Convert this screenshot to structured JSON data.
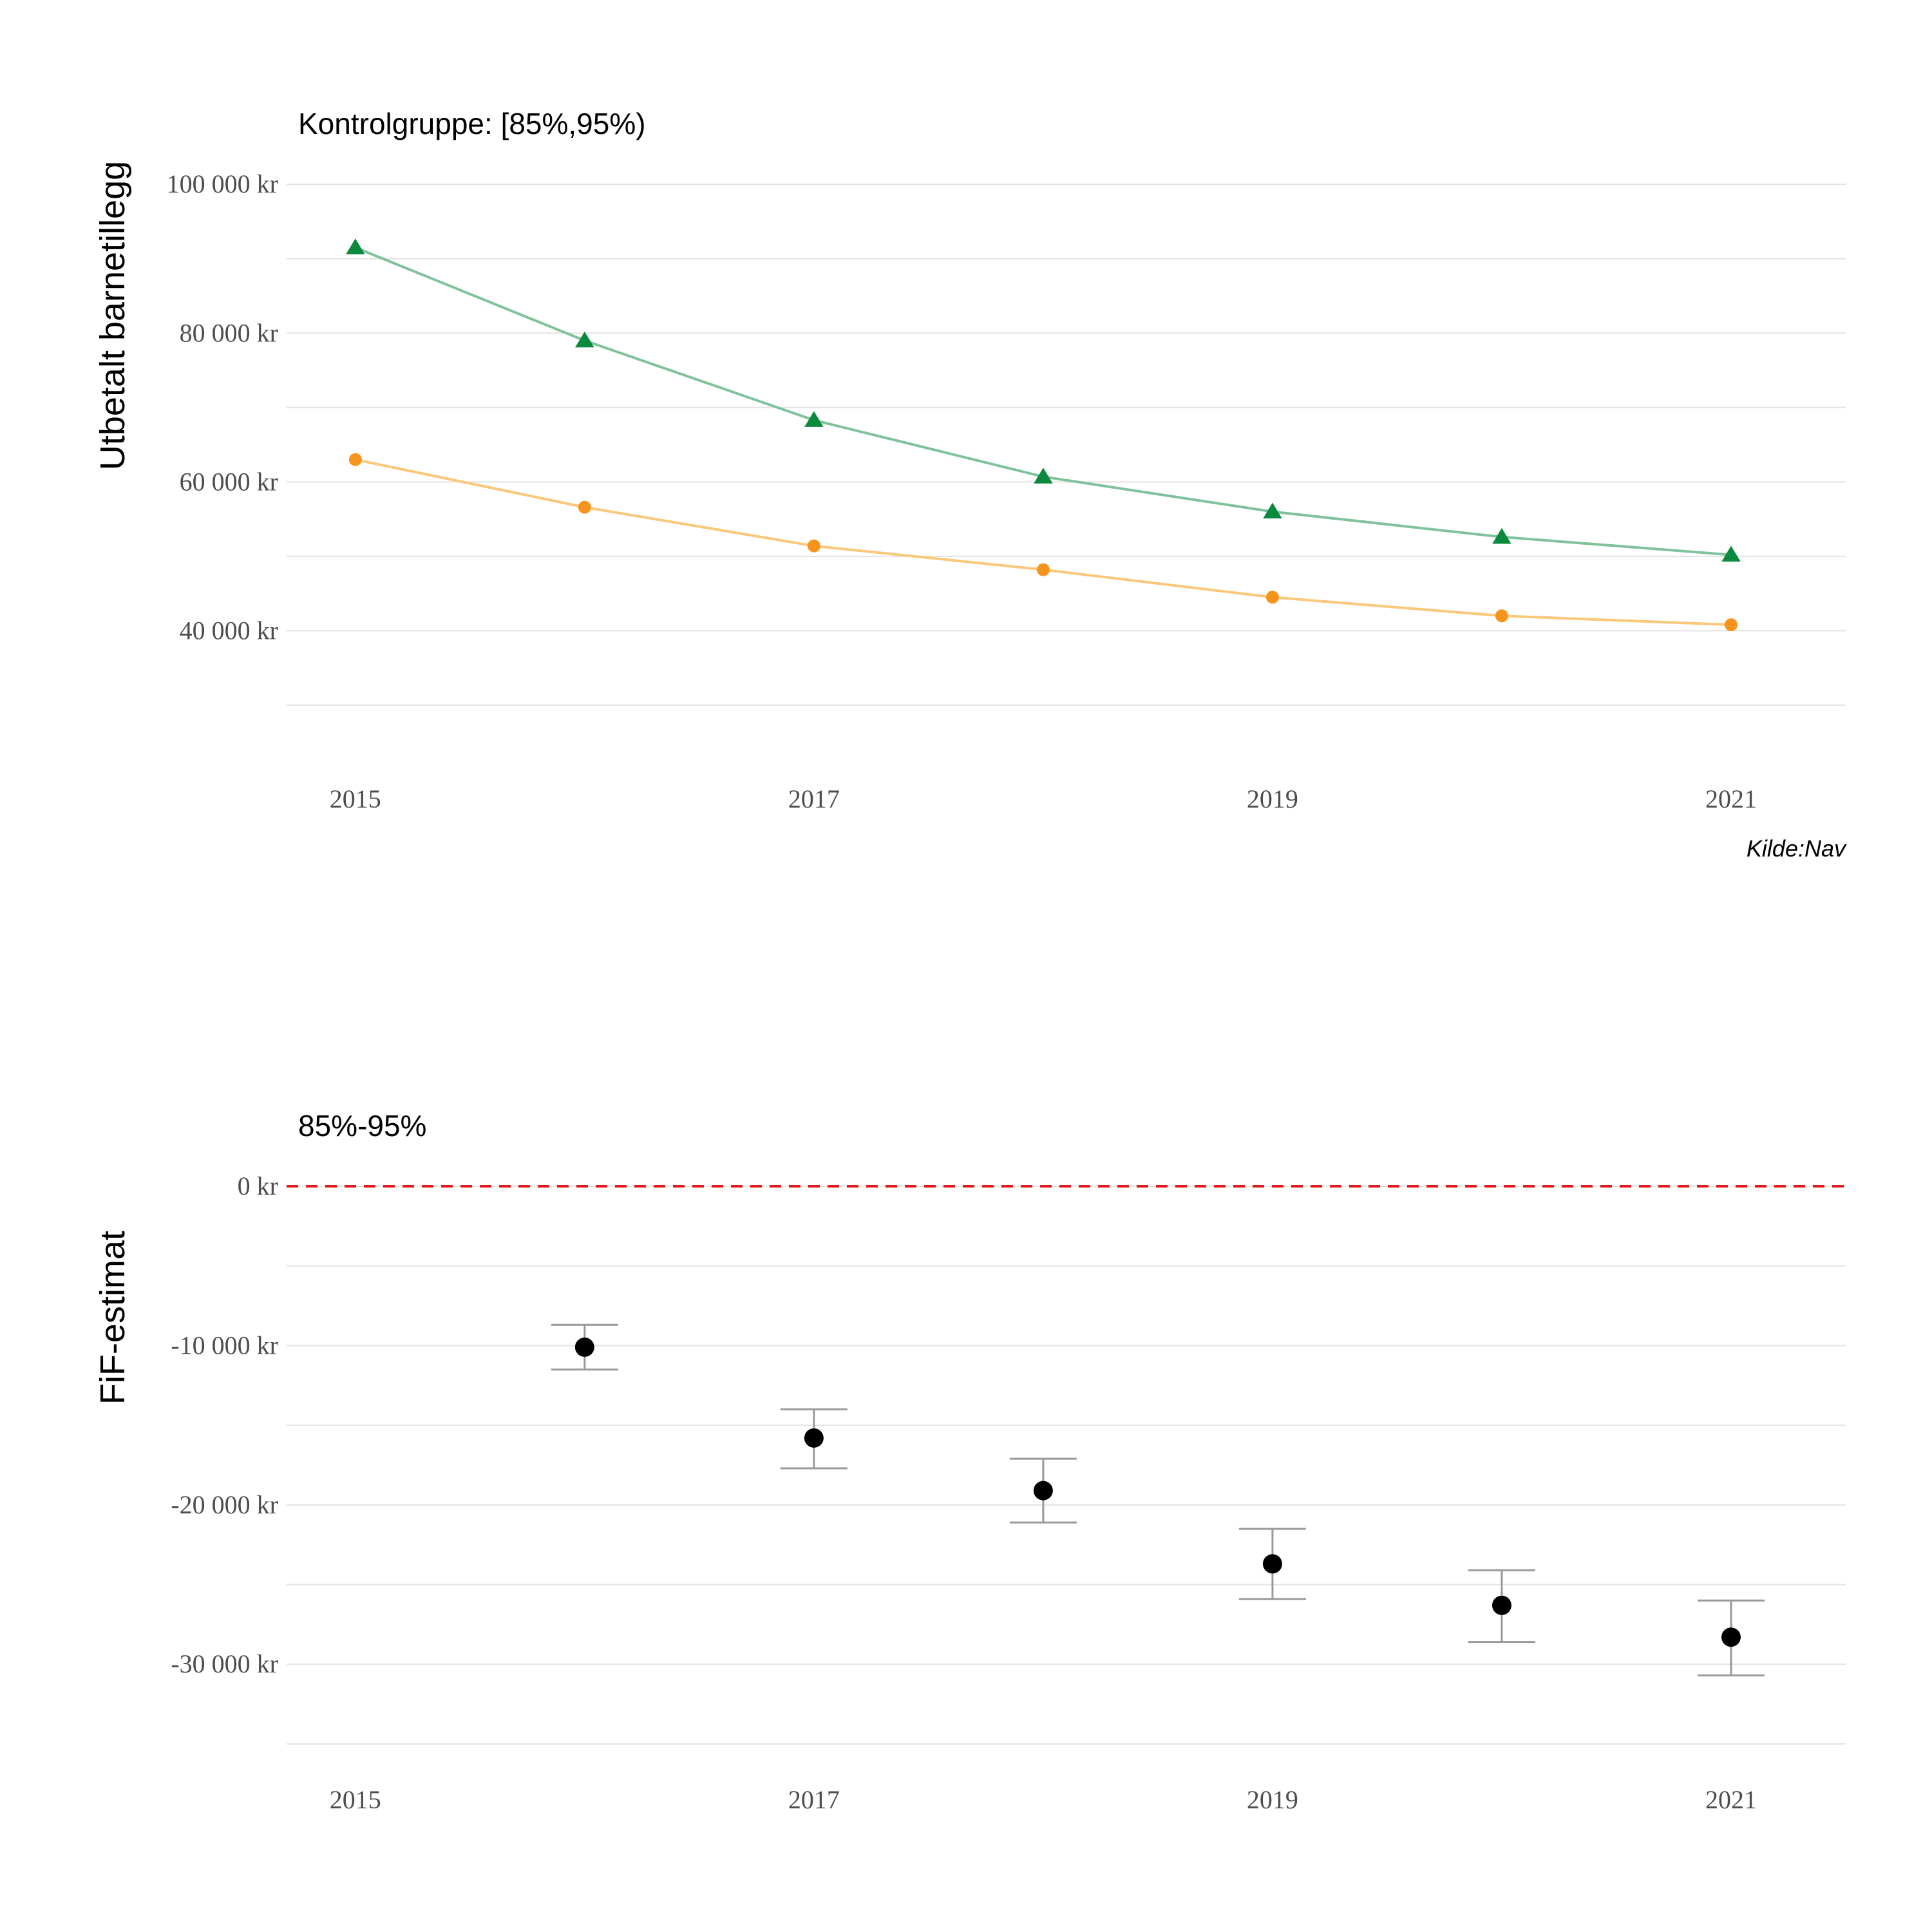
{
  "chart_data": [
    {
      "type": "line",
      "title": "Kontrolgruppe: [85%,95%)",
      "ylabel": "Utbetalt barnetillegg",
      "xlabel": "",
      "caption": "Kilde:Nav",
      "x": [
        2015,
        2016,
        2017,
        2018,
        2019,
        2020,
        2021
      ],
      "x_ticks": [
        2015,
        2017,
        2019,
        2021
      ],
      "x_tick_labels": [
        "2015",
        "2017",
        "2019",
        "2021"
      ],
      "xlim": [
        2014.7,
        2021.5
      ],
      "y_ticks": [
        40000,
        60000,
        80000,
        100000
      ],
      "y_tick_labels": [
        "40 000 kr",
        "60 000 kr",
        "80 000 kr",
        "100 000 kr"
      ],
      "ylim": [
        23500,
        104000
      ],
      "grid": true,
      "series": [
        {
          "marker": "triangle",
          "color": "#0b8a3e",
          "line_color": "#7fc29b",
          "values": [
            91500,
            79000,
            68300,
            60700,
            56000,
            52600,
            50200
          ]
        },
        {
          "marker": "circle",
          "color": "#f7941d",
          "line_color": "#fbc87a",
          "values": [
            63000,
            56600,
            51400,
            48200,
            44500,
            42000,
            40800
          ]
        }
      ]
    },
    {
      "type": "scatter",
      "title": "85%-95%",
      "ylabel": "FiF-estimat",
      "xlabel": "",
      "x": [
        2016,
        2017,
        2018,
        2019,
        2020,
        2021
      ],
      "x_ticks": [
        2015,
        2017,
        2019,
        2021
      ],
      "x_tick_labels": [
        "2015",
        "2017",
        "2019",
        "2021"
      ],
      "xlim": [
        2014.7,
        2021.5
      ],
      "y_ticks": [
        -30000,
        -20000,
        -10000,
        0
      ],
      "y_tick_labels": [
        "-30 000 kr",
        "-20 000 kr",
        "-10 000 kr",
        "0 kr"
      ],
      "ylim": [
        -36700,
        1700
      ],
      "grid": true,
      "reference_line": {
        "y": 0,
        "color": "#e31a1c",
        "style": "dashed"
      },
      "point_color": "#000000",
      "errorbar_color": "#999999",
      "values": [
        -10100,
        -15800,
        -19100,
        -23700,
        -26300,
        -28300
      ],
      "lower": [
        -11500,
        -17700,
        -21100,
        -25900,
        -28600,
        -30700
      ],
      "upper": [
        -8700,
        -14000,
        -17100,
        -21500,
        -24100,
        -26000
      ]
    }
  ]
}
